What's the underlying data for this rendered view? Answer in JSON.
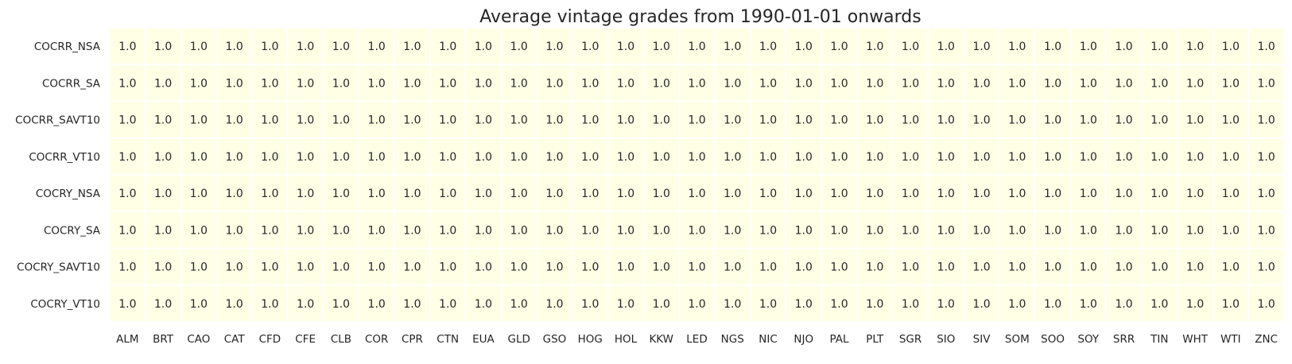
{
  "chart_data": {
    "type": "heatmap",
    "title": "Average vintage grades from 1990-01-01 onwards",
    "xlabel": "",
    "ylabel": "",
    "x_categories": [
      "ALM",
      "BRT",
      "CAO",
      "CAT",
      "CFD",
      "CFE",
      "CLB",
      "COR",
      "CPR",
      "CTN",
      "EUA",
      "GLD",
      "GSO",
      "HOG",
      "HOL",
      "KKW",
      "LED",
      "NGS",
      "NIC",
      "NJO",
      "PAL",
      "PLT",
      "SGR",
      "SIO",
      "SIV",
      "SOM",
      "SOO",
      "SOY",
      "SRR",
      "TIN",
      "WHT",
      "WTI",
      "ZNC"
    ],
    "y_categories": [
      "COCRR_NSA",
      "COCRR_SA",
      "COCRR_SAVT10",
      "COCRR_VT10",
      "COCRY_NSA",
      "COCRY_SA",
      "COCRY_SAVT10",
      "COCRY_VT10"
    ],
    "values": [
      [
        1.0,
        1.0,
        1.0,
        1.0,
        1.0,
        1.0,
        1.0,
        1.0,
        1.0,
        1.0,
        1.0,
        1.0,
        1.0,
        1.0,
        1.0,
        1.0,
        1.0,
        1.0,
        1.0,
        1.0,
        1.0,
        1.0,
        1.0,
        1.0,
        1.0,
        1.0,
        1.0,
        1.0,
        1.0,
        1.0,
        1.0,
        1.0,
        1.0
      ],
      [
        1.0,
        1.0,
        1.0,
        1.0,
        1.0,
        1.0,
        1.0,
        1.0,
        1.0,
        1.0,
        1.0,
        1.0,
        1.0,
        1.0,
        1.0,
        1.0,
        1.0,
        1.0,
        1.0,
        1.0,
        1.0,
        1.0,
        1.0,
        1.0,
        1.0,
        1.0,
        1.0,
        1.0,
        1.0,
        1.0,
        1.0,
        1.0,
        1.0
      ],
      [
        1.0,
        1.0,
        1.0,
        1.0,
        1.0,
        1.0,
        1.0,
        1.0,
        1.0,
        1.0,
        1.0,
        1.0,
        1.0,
        1.0,
        1.0,
        1.0,
        1.0,
        1.0,
        1.0,
        1.0,
        1.0,
        1.0,
        1.0,
        1.0,
        1.0,
        1.0,
        1.0,
        1.0,
        1.0,
        1.0,
        1.0,
        1.0,
        1.0
      ],
      [
        1.0,
        1.0,
        1.0,
        1.0,
        1.0,
        1.0,
        1.0,
        1.0,
        1.0,
        1.0,
        1.0,
        1.0,
        1.0,
        1.0,
        1.0,
        1.0,
        1.0,
        1.0,
        1.0,
        1.0,
        1.0,
        1.0,
        1.0,
        1.0,
        1.0,
        1.0,
        1.0,
        1.0,
        1.0,
        1.0,
        1.0,
        1.0,
        1.0
      ],
      [
        1.0,
        1.0,
        1.0,
        1.0,
        1.0,
        1.0,
        1.0,
        1.0,
        1.0,
        1.0,
        1.0,
        1.0,
        1.0,
        1.0,
        1.0,
        1.0,
        1.0,
        1.0,
        1.0,
        1.0,
        1.0,
        1.0,
        1.0,
        1.0,
        1.0,
        1.0,
        1.0,
        1.0,
        1.0,
        1.0,
        1.0,
        1.0,
        1.0
      ],
      [
        1.0,
        1.0,
        1.0,
        1.0,
        1.0,
        1.0,
        1.0,
        1.0,
        1.0,
        1.0,
        1.0,
        1.0,
        1.0,
        1.0,
        1.0,
        1.0,
        1.0,
        1.0,
        1.0,
        1.0,
        1.0,
        1.0,
        1.0,
        1.0,
        1.0,
        1.0,
        1.0,
        1.0,
        1.0,
        1.0,
        1.0,
        1.0,
        1.0
      ],
      [
        1.0,
        1.0,
        1.0,
        1.0,
        1.0,
        1.0,
        1.0,
        1.0,
        1.0,
        1.0,
        1.0,
        1.0,
        1.0,
        1.0,
        1.0,
        1.0,
        1.0,
        1.0,
        1.0,
        1.0,
        1.0,
        1.0,
        1.0,
        1.0,
        1.0,
        1.0,
        1.0,
        1.0,
        1.0,
        1.0,
        1.0,
        1.0,
        1.0
      ],
      [
        1.0,
        1.0,
        1.0,
        1.0,
        1.0,
        1.0,
        1.0,
        1.0,
        1.0,
        1.0,
        1.0,
        1.0,
        1.0,
        1.0,
        1.0,
        1.0,
        1.0,
        1.0,
        1.0,
        1.0,
        1.0,
        1.0,
        1.0,
        1.0,
        1.0,
        1.0,
        1.0,
        1.0,
        1.0,
        1.0,
        1.0,
        1.0,
        1.0
      ]
    ],
    "value_format_decimals": 1,
    "cell_color": "#ffffe5",
    "grid_line_color": "#ffffff",
    "text_color": "#262626",
    "background_color": "#ffffff",
    "grid": true
  }
}
